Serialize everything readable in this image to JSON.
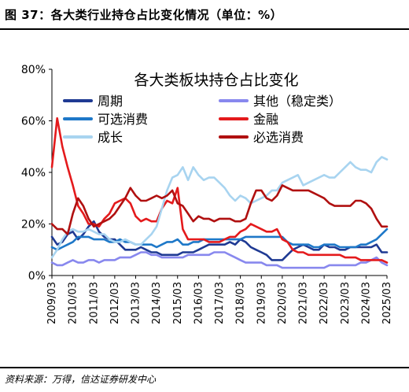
{
  "figure_title": "图 37：各大类行业持仓占比变化情况（单位：%）",
  "source_note": "资料来源：万得，信达证券研发中心",
  "chart_data": {
    "type": "line",
    "title": "各大类板块持仓占比变化",
    "xlabel": "",
    "ylabel": "",
    "ylim": [
      0,
      80
    ],
    "yticks": [
      0,
      20,
      40,
      60,
      80
    ],
    "ytick_labels": [
      "0%",
      "20%",
      "40%",
      "60%",
      "80%"
    ],
    "xtick_labels": [
      "2009/03",
      "2010/03",
      "2011/03",
      "2012/03",
      "2013/03",
      "2014/03",
      "2015/03",
      "2016/03",
      "2017/03",
      "2018/03",
      "2019/03",
      "2020/03",
      "2021/03",
      "2022/03",
      "2023/03",
      "2024/03",
      "2025/03"
    ],
    "x_quarters": [
      "2009/03",
      "2009/06",
      "2009/09",
      "2009/12",
      "2010/03",
      "2010/06",
      "2010/09",
      "2010/12",
      "2011/03",
      "2011/06",
      "2011/09",
      "2011/12",
      "2012/03",
      "2012/06",
      "2012/09",
      "2012/12",
      "2013/03",
      "2013/06",
      "2013/09",
      "2013/12",
      "2014/03",
      "2014/06",
      "2014/09",
      "2014/12",
      "2015/03",
      "2015/06",
      "2015/09",
      "2015/12",
      "2016/03",
      "2016/06",
      "2016/09",
      "2016/12",
      "2017/03",
      "2017/06",
      "2017/09",
      "2017/12",
      "2018/03",
      "2018/06",
      "2018/09",
      "2018/12",
      "2019/03",
      "2019/06",
      "2019/09",
      "2019/12",
      "2020/03",
      "2020/06",
      "2020/09",
      "2020/12",
      "2021/03",
      "2021/06",
      "2021/09",
      "2021/12",
      "2022/03",
      "2022/06",
      "2022/09",
      "2022/12",
      "2023/03",
      "2023/06",
      "2023/09",
      "2023/12",
      "2024/03",
      "2024/06",
      "2024/09",
      "2024/12",
      "2025/03"
    ],
    "grid": false,
    "legend_position": "top",
    "series": [
      {
        "name": "周期",
        "color": "#1f3a93",
        "values": [
          15,
          12,
          13,
          16,
          17,
          14,
          16,
          19,
          21,
          17,
          15,
          14,
          14,
          12,
          10,
          10,
          10,
          11,
          10,
          9,
          9,
          8,
          8,
          8,
          8,
          9,
          9,
          9,
          10,
          11,
          12,
          12,
          12,
          12,
          13,
          12,
          14,
          13,
          11,
          10,
          9,
          8,
          6,
          6,
          6,
          8,
          10,
          11,
          12,
          11,
          10,
          10,
          12,
          11,
          11,
          10,
          10,
          11,
          11,
          11,
          11,
          11,
          12,
          9,
          9
        ]
      },
      {
        "name": "其他（稳定类）",
        "color": "#8888ee",
        "values": [
          5,
          4,
          4,
          5,
          6,
          5,
          5,
          6,
          6,
          5,
          6,
          6,
          6,
          7,
          7,
          7,
          8,
          9,
          9,
          8,
          8,
          7,
          7,
          7,
          7,
          7,
          8,
          8,
          8,
          8,
          8,
          9,
          9,
          9,
          8,
          7,
          6,
          5,
          5,
          5,
          5,
          4,
          4,
          4,
          3,
          3,
          3,
          3,
          3,
          3,
          3,
          3,
          3,
          4,
          4,
          4,
          4,
          4,
          4,
          5,
          5,
          6,
          7,
          5,
          4
        ]
      },
      {
        "name": "可选消费",
        "color": "#1e78c8",
        "values": [
          11,
          10,
          11,
          12,
          13,
          15,
          15,
          15,
          14,
          14,
          14,
          13,
          13,
          14,
          13,
          13,
          12,
          12,
          12,
          12,
          11,
          12,
          13,
          13,
          14,
          12,
          12,
          13,
          13,
          14,
          14,
          14,
          14,
          14,
          14,
          14,
          14,
          15,
          15,
          15,
          15,
          15,
          15,
          15,
          15,
          13,
          12,
          12,
          12,
          12,
          11,
          11,
          12,
          12,
          12,
          11,
          11,
          11,
          11,
          12,
          12,
          13,
          14,
          16,
          18
        ]
      },
      {
        "name": "金融",
        "color": "#e41a1c",
        "values": [
          42,
          61,
          50,
          42,
          35,
          27,
          24,
          20,
          20,
          19,
          22,
          24,
          28,
          29,
          30,
          28,
          23,
          21,
          22,
          21,
          21,
          26,
          29,
          28,
          34,
          18,
          14,
          14,
          14,
          14,
          13,
          13,
          13,
          14,
          15,
          15,
          17,
          18,
          20,
          19,
          18,
          17,
          17,
          18,
          14,
          13,
          10,
          9,
          9,
          8,
          8,
          8,
          8,
          8,
          8,
          8,
          7,
          7,
          7,
          6,
          6,
          6,
          6,
          6,
          5
        ]
      },
      {
        "name": "成长",
        "color": "#a8d4f0",
        "values": [
          7,
          10,
          14,
          17,
          18,
          17,
          17,
          18,
          17,
          16,
          16,
          14,
          13,
          13,
          14,
          13,
          12,
          12,
          14,
          16,
          19,
          26,
          33,
          38,
          39,
          42,
          37,
          42,
          39,
          37,
          38,
          38,
          36,
          34,
          31,
          29,
          31,
          30,
          28,
          29,
          30,
          31,
          33,
          33,
          36,
          37,
          38,
          39,
          35,
          36,
          37,
          38,
          39,
          38,
          38,
          40,
          42,
          44,
          42,
          41,
          41,
          40,
          44,
          46,
          45
        ]
      },
      {
        "name": "必选消费",
        "color": "#b01010",
        "values": [
          20,
          18,
          18,
          16,
          24,
          30,
          27,
          22,
          19,
          20,
          21,
          22,
          24,
          27,
          30,
          34,
          31,
          29,
          29,
          30,
          31,
          30,
          31,
          33,
          28,
          27,
          24,
          21,
          23,
          22,
          22,
          21,
          22,
          22,
          22,
          21,
          21,
          22,
          28,
          33,
          33,
          30,
          29,
          31,
          35,
          34,
          33,
          33,
          33,
          33,
          32,
          31,
          30,
          28,
          27,
          27,
          27,
          27,
          29,
          29,
          28,
          26,
          22,
          19,
          19
        ]
      }
    ]
  }
}
